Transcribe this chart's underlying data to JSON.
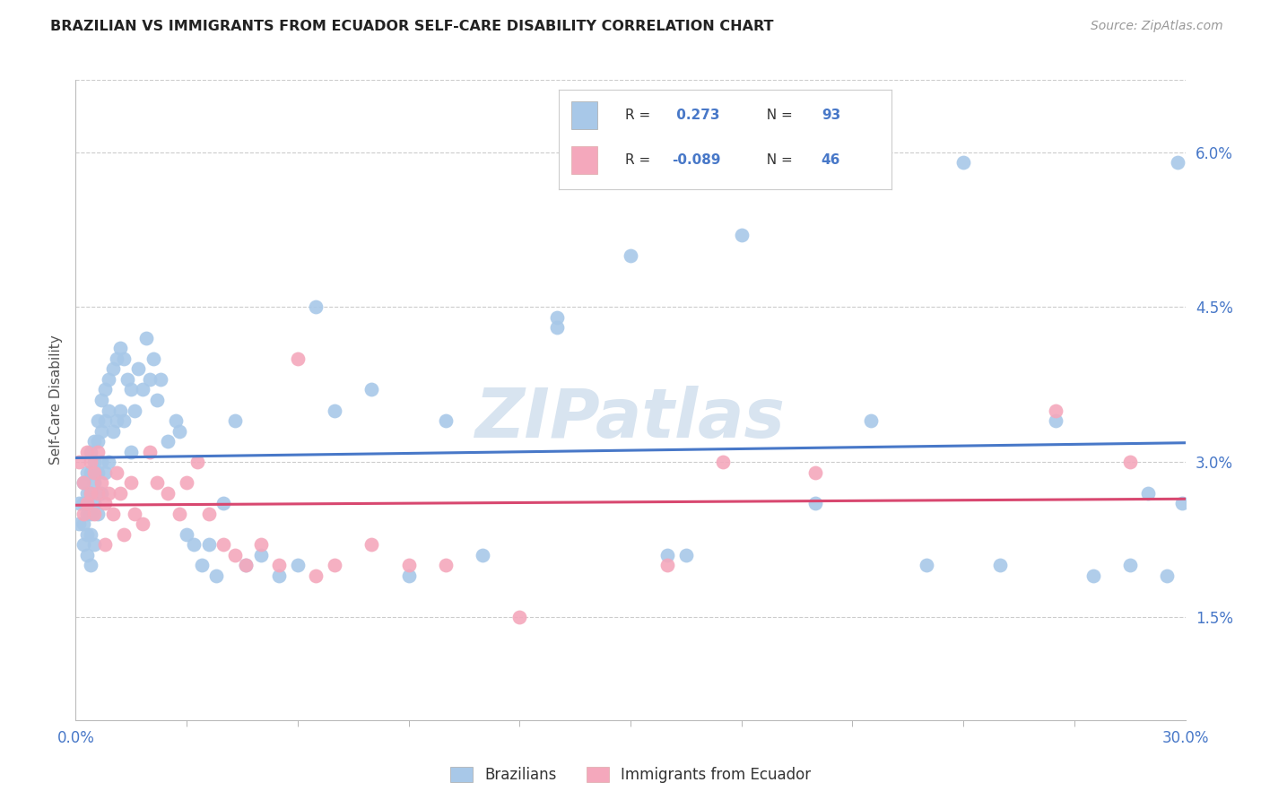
{
  "title": "BRAZILIAN VS IMMIGRANTS FROM ECUADOR SELF-CARE DISABILITY CORRELATION CHART",
  "source": "Source: ZipAtlas.com",
  "ylabel": "Self-Care Disability",
  "ytick_labels": [
    "1.5%",
    "3.0%",
    "4.5%",
    "6.0%"
  ],
  "ytick_values": [
    0.015,
    0.03,
    0.045,
    0.06
  ],
  "xmin": 0.0,
  "xmax": 0.3,
  "ymin": 0.005,
  "ymax": 0.067,
  "r_brazilian": "0.273",
  "n_brazilian": "93",
  "r_ecuador": "-0.089",
  "n_ecuador": "46",
  "color_brazilian": "#a8c8e8",
  "color_ecuador": "#f4a8bc",
  "line_color_brazilian": "#4878c8",
  "line_color_ecuador": "#d84870",
  "watermark": "ZIPatlas",
  "watermark_color": "#d8e4f0",
  "legend_label_brazilian": "Brazilians",
  "legend_label_ecuador": "Immigrants from Ecuador",
  "brazilian_x": [
    0.001,
    0.001,
    0.002,
    0.002,
    0.002,
    0.002,
    0.003,
    0.003,
    0.003,
    0.003,
    0.003,
    0.004,
    0.004,
    0.004,
    0.004,
    0.004,
    0.004,
    0.005,
    0.005,
    0.005,
    0.005,
    0.005,
    0.006,
    0.006,
    0.006,
    0.006,
    0.007,
    0.007,
    0.007,
    0.007,
    0.008,
    0.008,
    0.008,
    0.009,
    0.009,
    0.009,
    0.01,
    0.01,
    0.011,
    0.011,
    0.012,
    0.012,
    0.013,
    0.013,
    0.014,
    0.015,
    0.015,
    0.016,
    0.017,
    0.018,
    0.019,
    0.02,
    0.021,
    0.022,
    0.023,
    0.025,
    0.027,
    0.028,
    0.03,
    0.032,
    0.034,
    0.036,
    0.038,
    0.04,
    0.043,
    0.046,
    0.05,
    0.055,
    0.06,
    0.065,
    0.07,
    0.08,
    0.09,
    0.1,
    0.11,
    0.13,
    0.15,
    0.165,
    0.18,
    0.2,
    0.215,
    0.23,
    0.25,
    0.265,
    0.275,
    0.285,
    0.29,
    0.295,
    0.298,
    0.299,
    0.13,
    0.16,
    0.24
  ],
  "brazilian_y": [
    0.026,
    0.024,
    0.028,
    0.026,
    0.024,
    0.022,
    0.029,
    0.027,
    0.025,
    0.023,
    0.021,
    0.031,
    0.029,
    0.027,
    0.025,
    0.023,
    0.02,
    0.032,
    0.03,
    0.028,
    0.026,
    0.022,
    0.034,
    0.032,
    0.029,
    0.025,
    0.036,
    0.033,
    0.03,
    0.027,
    0.037,
    0.034,
    0.029,
    0.038,
    0.035,
    0.03,
    0.039,
    0.033,
    0.04,
    0.034,
    0.041,
    0.035,
    0.04,
    0.034,
    0.038,
    0.037,
    0.031,
    0.035,
    0.039,
    0.037,
    0.042,
    0.038,
    0.04,
    0.036,
    0.038,
    0.032,
    0.034,
    0.033,
    0.023,
    0.022,
    0.02,
    0.022,
    0.019,
    0.026,
    0.034,
    0.02,
    0.021,
    0.019,
    0.02,
    0.045,
    0.035,
    0.037,
    0.019,
    0.034,
    0.021,
    0.044,
    0.05,
    0.021,
    0.052,
    0.026,
    0.034,
    0.02,
    0.02,
    0.034,
    0.019,
    0.02,
    0.027,
    0.019,
    0.059,
    0.026,
    0.043,
    0.021,
    0.059
  ],
  "ecuador_x": [
    0.001,
    0.002,
    0.002,
    0.003,
    0.003,
    0.004,
    0.004,
    0.005,
    0.005,
    0.006,
    0.006,
    0.007,
    0.008,
    0.008,
    0.009,
    0.01,
    0.011,
    0.012,
    0.013,
    0.015,
    0.016,
    0.018,
    0.02,
    0.022,
    0.025,
    0.028,
    0.03,
    0.033,
    0.036,
    0.04,
    0.043,
    0.046,
    0.05,
    0.055,
    0.06,
    0.065,
    0.07,
    0.08,
    0.09,
    0.1,
    0.12,
    0.16,
    0.175,
    0.2,
    0.265,
    0.285
  ],
  "ecuador_y": [
    0.03,
    0.028,
    0.025,
    0.031,
    0.026,
    0.03,
    0.027,
    0.029,
    0.025,
    0.031,
    0.027,
    0.028,
    0.026,
    0.022,
    0.027,
    0.025,
    0.029,
    0.027,
    0.023,
    0.028,
    0.025,
    0.024,
    0.031,
    0.028,
    0.027,
    0.025,
    0.028,
    0.03,
    0.025,
    0.022,
    0.021,
    0.02,
    0.022,
    0.02,
    0.04,
    0.019,
    0.02,
    0.022,
    0.02,
    0.02,
    0.015,
    0.02,
    0.03,
    0.029,
    0.035,
    0.03
  ]
}
